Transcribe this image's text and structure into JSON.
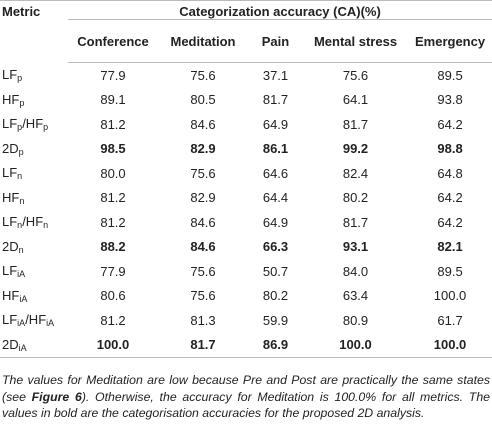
{
  "table": {
    "header": {
      "metric": "Metric",
      "group": "Categorization accuracy (CA)(%)",
      "columns": [
        "Conference",
        "Meditation",
        "Pain",
        "Mental stress",
        "Emergency"
      ]
    },
    "rows": [
      {
        "metric": [
          "LF",
          "p"
        ],
        "cells": [
          "77.9",
          "75.6",
          "37.1",
          "75.6",
          "89.5"
        ]
      },
      {
        "metric": [
          "HF",
          "p"
        ],
        "cells": [
          "89.1",
          "80.5",
          "81.7",
          "64.1",
          "93.8"
        ]
      },
      {
        "metric": [
          "LF",
          "p",
          "/HF",
          "p"
        ],
        "cells": [
          "81.2",
          "84.6",
          "64.9",
          "81.7",
          "64.2"
        ]
      },
      {
        "metric": [
          "2D",
          "p"
        ],
        "cells": [
          "98.5",
          "82.9",
          "86.1",
          "99.2",
          "98.8"
        ]
      },
      {
        "metric": [
          "LF",
          "n"
        ],
        "cells": [
          "80.0",
          "75.6",
          "64.6",
          "82.4",
          "64.8"
        ]
      },
      {
        "metric": [
          "HF",
          "n"
        ],
        "cells": [
          "81.2",
          "82.9",
          "64.4",
          "80.2",
          "64.2"
        ]
      },
      {
        "metric": [
          "LF",
          "n",
          "/HF",
          "n"
        ],
        "cells": [
          "81.2",
          "84.6",
          "64.9",
          "81.7",
          "64.2"
        ]
      },
      {
        "metric": [
          "2D",
          "n"
        ],
        "cells": [
          "88.2",
          "84.6",
          "66.3",
          "93.1",
          "82.1"
        ]
      },
      {
        "metric": [
          "LF",
          "iA"
        ],
        "cells": [
          "77.9",
          "75.6",
          "50.7",
          "84.0",
          "89.5"
        ]
      },
      {
        "metric": [
          "HF",
          "iA"
        ],
        "cells": [
          "80.6",
          "75.6",
          "80.2",
          "63.4",
          "100.0"
        ]
      },
      {
        "metric": [
          "LF",
          "iA",
          "/HF",
          "iA"
        ],
        "cells": [
          "81.2",
          "81.3",
          "59.9",
          "80.9",
          "61.7"
        ]
      },
      {
        "metric": [
          "2D",
          "iA"
        ],
        "cells": [
          "100.0",
          "81.7",
          "86.9",
          "100.0",
          "100.0"
        ]
      }
    ]
  },
  "footnote": [
    "The values for Meditation are low because Pre and Post are practically the same states (see ",
    "Figure 6",
    "). Otherwise, the accuracy for Meditation is 100.0% for all metrics. The values in bold are the categorisation accuracies for the proposed 2D analysis."
  ]
}
